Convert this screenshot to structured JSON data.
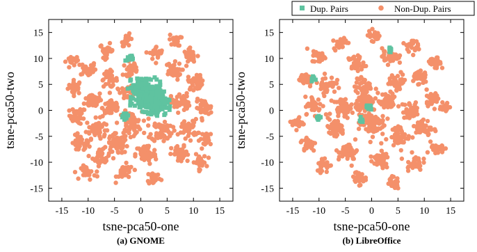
{
  "legend": {
    "entries": [
      {
        "label": "Dup. Pairs",
        "color": "#5fc3a0",
        "marker": "square"
      },
      {
        "label": "Non-Dup. Pairs",
        "color": "#f4906a",
        "marker": "circle"
      }
    ]
  },
  "colors": {
    "dup": "#5fc3a0",
    "nondup": "#f4906a",
    "axis": "#000000"
  },
  "chart_data": [
    {
      "type": "scatter",
      "caption": "(a) GNOME",
      "xlabel": "tsne-pca50-one",
      "ylabel": "tsne-pca50-two",
      "xlim": [
        -17.5,
        17.5
      ],
      "ylim": [
        -17.5,
        17.5
      ],
      "xticks": [
        -15,
        -10,
        -5,
        0,
        5,
        10,
        15
      ],
      "yticks": [
        -15,
        -10,
        -5,
        0,
        5,
        10,
        15
      ],
      "grid": false,
      "series": [
        {
          "name": "Non-Dup. Pairs",
          "marker": "circle",
          "clusters": [
            [
              -12.5,
              4.5,
              1.2
            ],
            [
              -12,
              -1,
              1.4
            ],
            [
              -11.5,
              -6.5,
              1.5
            ],
            [
              -10,
              8,
              1.3
            ],
            [
              -9,
              2,
              1.5
            ],
            [
              -8.5,
              -3.5,
              1.7
            ],
            [
              -7.5,
              -9,
              1.5
            ],
            [
              -6.5,
              11.5,
              1.2
            ],
            [
              -6,
              6,
              1.4
            ],
            [
              -5.5,
              0.5,
              1.6
            ],
            [
              -4.5,
              -6.5,
              1.8
            ],
            [
              -3,
              -12,
              1.4
            ],
            [
              -2.5,
              3.5,
              1.2
            ],
            [
              -2.5,
              13.5,
              1.0
            ],
            [
              -2,
              -2.5,
              2.0
            ],
            [
              1,
              -8.5,
              1.8
            ],
            [
              2.5,
              -13,
              1.2
            ],
            [
              3,
              11,
              1.2
            ],
            [
              4,
              -4,
              1.8
            ],
            [
              6,
              7.5,
              1.5
            ],
            [
              6.5,
              13.5,
              1.0
            ],
            [
              7.5,
              1.5,
              1.6
            ],
            [
              7.5,
              -8.5,
              1.5
            ],
            [
              9,
              -3.5,
              1.6
            ],
            [
              10.5,
              5.5,
              1.4
            ],
            [
              11,
              -10,
              1.3
            ],
            [
              12,
              0.5,
              1.4
            ],
            [
              12.5,
              -5.5,
              1.2
            ],
            [
              -10,
              -12,
              1.2
            ],
            [
              -2,
              8,
              1.2
            ],
            [
              9.5,
              10.5,
              1.2
            ],
            [
              -13,
              9.5,
              1.0
            ]
          ]
        },
        {
          "name": "Dup. Pairs",
          "marker": "square",
          "clusters": [
            [
              1.5,
              2.5,
              2.4
            ],
            [
              3,
              1,
              1.6
            ],
            [
              0,
              4.5,
              1.4
            ],
            [
              -2,
              10,
              0.5
            ],
            [
              -3,
              -1,
              0.6
            ]
          ]
        }
      ]
    },
    {
      "type": "scatter",
      "caption": "(b) LibreOffice",
      "xlabel": "tsne-pca50-one",
      "ylabel": "tsne-pca50-two",
      "xlim": [
        -17.5,
        17.5
      ],
      "ylim": [
        -17.5,
        17.5
      ],
      "xticks": [
        -15,
        -10,
        -5,
        0,
        5,
        10,
        15
      ],
      "yticks": [
        -15,
        -10,
        -5,
        0,
        5,
        10,
        15
      ],
      "grid": false,
      "series": [
        {
          "name": "Non-Dup. Pairs",
          "marker": "circle",
          "clusters": [
            [
              -14,
              -2.5,
              1.0
            ],
            [
              -12.5,
              6,
              1.3
            ],
            [
              -12,
              -6.5,
              1.3
            ],
            [
              -11,
              1,
              1.5
            ],
            [
              -10,
              10.5,
              1.2
            ],
            [
              -9,
              -10.5,
              1.3
            ],
            [
              -8.5,
              5,
              1.5
            ],
            [
              -7,
              -3.5,
              1.7
            ],
            [
              -6,
              13,
              1.1
            ],
            [
              -5.5,
              0.5,
              1.6
            ],
            [
              -4.5,
              -8,
              1.6
            ],
            [
              -3,
              9,
              1.4
            ],
            [
              -2.5,
              -13,
              1.2
            ],
            [
              -1.5,
              4.5,
              1.5
            ],
            [
              0,
              -2.5,
              2.2
            ],
            [
              0.5,
              14.5,
              1.0
            ],
            [
              1.5,
              -9.5,
              1.6
            ],
            [
              3,
              1.5,
              1.6
            ],
            [
              3.5,
              10.5,
              1.4
            ],
            [
              4,
              -14,
              1.1
            ],
            [
              5,
              5.5,
              1.5
            ],
            [
              5.5,
              -5,
              1.6
            ],
            [
              7.5,
              0,
              1.5
            ],
            [
              7.5,
              12.5,
              1.1
            ],
            [
              8,
              -10,
              1.4
            ],
            [
              9,
              6.5,
              1.4
            ],
            [
              10,
              -3.5,
              1.5
            ],
            [
              11.5,
              2.5,
              1.3
            ],
            [
              12,
              9,
              1.1
            ],
            [
              12.5,
              -7.5,
              1.2
            ],
            [
              14,
              0.5,
              1.0
            ],
            [
              -1,
              1.5,
              1.8
            ]
          ]
        },
        {
          "name": "Dup. Pairs",
          "marker": "square",
          "clusters": [
            [
              3.5,
              11.5,
              0.4
            ],
            [
              -11,
              6,
              0.4
            ],
            [
              -0.5,
              0.5,
              0.5
            ],
            [
              -2,
              -2,
              0.4
            ],
            [
              -10,
              -1.5,
              0.4
            ]
          ]
        }
      ]
    }
  ]
}
